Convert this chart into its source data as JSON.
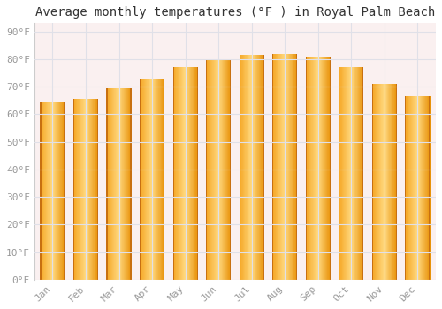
{
  "title": "Average monthly temperatures (°F ) in Royal Palm Beach",
  "months": [
    "Jan",
    "Feb",
    "Mar",
    "Apr",
    "May",
    "Jun",
    "Jul",
    "Aug",
    "Sep",
    "Oct",
    "Nov",
    "Dec"
  ],
  "values": [
    64.5,
    65.5,
    69.5,
    73,
    77,
    80,
    81.5,
    82,
    81,
    77,
    71,
    66.5
  ],
  "bar_color_left": "#F5A623",
  "bar_color_center": "#FFD980",
  "bar_color_right": "#E8920A",
  "background_color": "#FFFFFF",
  "plot_bg_color": "#FAF0F0",
  "ytick_labels": [
    "0°F",
    "10°F",
    "20°F",
    "30°F",
    "40°F",
    "50°F",
    "60°F",
    "70°F",
    "80°F",
    "90°F"
  ],
  "ytick_values": [
    0,
    10,
    20,
    30,
    40,
    50,
    60,
    70,
    80,
    90
  ],
  "ylim": [
    0,
    93
  ],
  "grid_color": "#E0E0E8",
  "title_fontsize": 10,
  "tick_fontsize": 8,
  "font_family": "monospace",
  "tick_color": "#999999"
}
